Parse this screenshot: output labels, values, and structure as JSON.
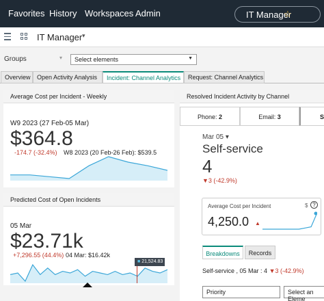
{
  "topnav": {
    "items": [
      "Favorites",
      "History",
      "Workspaces",
      "Admin"
    ],
    "app_name": "IT Manager",
    "star": "☆"
  },
  "appbar": {
    "title": "IT Manager",
    "caret": "▾"
  },
  "filters": {
    "groups_label": "Groups",
    "groups_caret": "▾",
    "select_value": "Select elements",
    "select_arrow": "▼"
  },
  "tabs": [
    {
      "label": "Overview",
      "active": false
    },
    {
      "label": "Open Activity Analysis",
      "active": false
    },
    {
      "label": "Incident: Channel Analytics",
      "active": true
    },
    {
      "label": "Request: Channel Analytics",
      "active": false
    }
  ],
  "weekly_panel": {
    "title": "Average Cost per Incident - Weekly",
    "period": "W9 2023 (27 Feb-05 Mar)",
    "value": "$364.8",
    "change": "-174.7 (-32.4%)",
    "comparison": "W8 2023 (20 Feb-26 Feb): $539.5",
    "sparkline": [
      520,
      520,
      516,
      512,
      540,
      560,
      548,
      540,
      530
    ]
  },
  "predicted_panel": {
    "title": "Predicted Cost of Open Incidents",
    "period": "05 Mar",
    "value": "$23.71k",
    "change": "+7,296.55 (44.4%)",
    "comparison": "04 Mar: $16.42k",
    "tooltip": "21,524.83",
    "sparkline": [
      18,
      19,
      14,
      24,
      18,
      22,
      18,
      20,
      19,
      21,
      17,
      20,
      19,
      18,
      20,
      18,
      19,
      17,
      22,
      20,
      19,
      21
    ]
  },
  "resolved_panel": {
    "title": "Resolved Incident Activity by Channel",
    "channels": [
      {
        "label": "Phone:",
        "count": "2"
      },
      {
        "label": "Email:",
        "count": "3"
      },
      {
        "label": "S",
        "count": ""
      }
    ],
    "date": "Mar 05",
    "date_caret": "▾",
    "channel_name": "Self-service",
    "count": "4",
    "count_change": "▼3 (-42.9%)",
    "kpi": {
      "title": "Average Cost per Incident",
      "currency_icon": "$",
      "help_icon": "?",
      "value": "4,250.0",
      "trend_icon": "▲",
      "sparkline": [
        10,
        10,
        10,
        10,
        10,
        10,
        10,
        11,
        12,
        24
      ]
    },
    "subtabs": [
      {
        "label": "Breakdowns",
        "active": true
      },
      {
        "label": "Records",
        "active": false
      }
    ],
    "breakdown_line_prefix": "Self-service , 05 Mar : 4",
    "breakdown_change": "▼3 (-42.9%)",
    "dropdown_priority": "Priority",
    "dropdown_select": "Select an Eleme"
  },
  "colors": {
    "nav_bg": "#1f2a35",
    "accent": "#0a8a7a",
    "sparkline_fill": "#d6eef8",
    "sparkline_line": "#3aa6d8",
    "negative": "#c0392b"
  }
}
